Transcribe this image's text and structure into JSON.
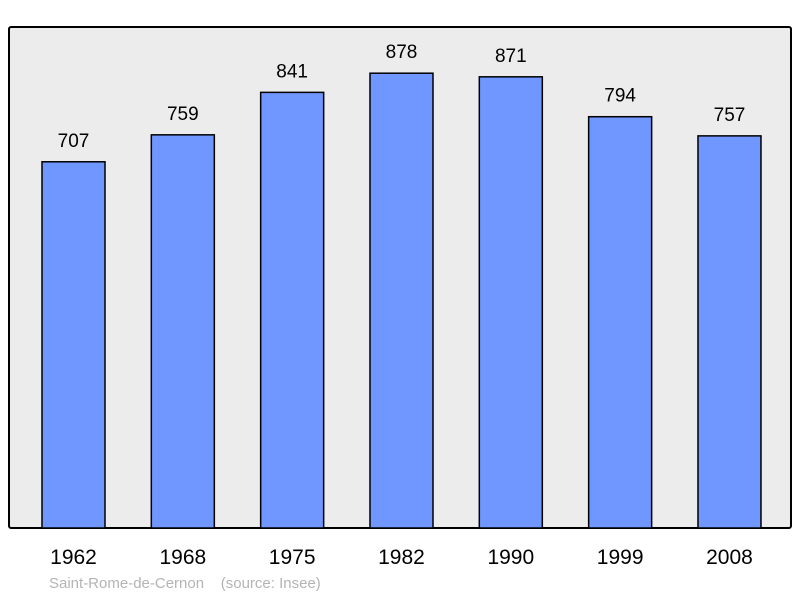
{
  "chart_data": {
    "type": "bar",
    "categories": [
      "1962",
      "1968",
      "1975",
      "1982",
      "1990",
      "1999",
      "2008"
    ],
    "values": [
      707,
      759,
      841,
      878,
      871,
      794,
      757
    ],
    "title": "",
    "xlabel": "",
    "ylabel": "",
    "grid": false,
    "data_labels": true,
    "colors": {
      "bar": "#7096ff",
      "plot_background": "#ececec",
      "border": "#000000"
    }
  },
  "caption": {
    "place": "Saint-Rome-de-Cernon",
    "source": "(source: Insee)"
  }
}
